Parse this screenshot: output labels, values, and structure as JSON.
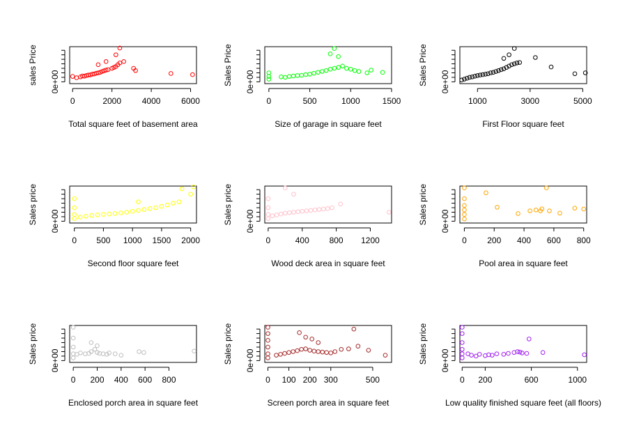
{
  "chart_data": [
    {
      "type": "scatter",
      "color": "#ff0000",
      "xlabel": "Total square feet of basement area",
      "ylabel": "sales Price",
      "xlim": [
        -150,
        6300
      ],
      "ylim": [
        -40000,
        780000
      ],
      "xticks": [
        "0",
        "2000",
        "4000",
        "6000"
      ],
      "yticks": [
        "0e+00"
      ],
      "x": [
        0,
        200,
        400,
        500,
        600,
        700,
        800,
        900,
        1000,
        1100,
        1200,
        1300,
        1400,
        1500,
        1600,
        1700,
        1800,
        2000,
        2100,
        2200,
        2300,
        2400,
        2600,
        3100,
        3200,
        5000,
        6100,
        1300,
        1700,
        2200,
        2400
      ],
      "y": [
        120000,
        90000,
        110000,
        130000,
        125000,
        140000,
        150000,
        155000,
        170000,
        175000,
        190000,
        200000,
        210000,
        230000,
        245000,
        260000,
        270000,
        300000,
        320000,
        340000,
        380000,
        420000,
        450000,
        300000,
        250000,
        185000,
        160000,
        380000,
        450000,
        600000,
        750000
      ]
    },
    {
      "type": "scatter",
      "color": "#00ff00",
      "xlabel": "Size of garage in square feet",
      "ylabel": "Sales Price",
      "xlim": [
        -50,
        1500
      ],
      "ylim": [
        -40000,
        780000
      ],
      "xticks": [
        "0",
        "500",
        "1000",
        "1500"
      ],
      "yticks": [
        "0e+00"
      ],
      "x": [
        0,
        0,
        0,
        150,
        200,
        250,
        300,
        350,
        400,
        450,
        500,
        550,
        600,
        650,
        700,
        750,
        800,
        850,
        900,
        950,
        1000,
        1050,
        1100,
        1200,
        1250,
        1390,
        750,
        800,
        850
      ],
      "y": [
        60000,
        120000,
        200000,
        110000,
        100000,
        120000,
        130000,
        140000,
        145000,
        160000,
        170000,
        190000,
        210000,
        230000,
        250000,
        280000,
        300000,
        320000,
        350000,
        300000,
        280000,
        250000,
        230000,
        200000,
        260000,
        210000,
        620000,
        740000,
        560000
      ]
    },
    {
      "type": "scatter",
      "color": "#000000",
      "xlabel": "First Floor square feet",
      "ylabel": "Sales Price",
      "xlim": [
        330,
        5150
      ],
      "ylim": [
        -40000,
        780000
      ],
      "xticks": [
        "1000",
        "3000",
        "5000"
      ],
      "yticks": [
        "0e+00"
      ],
      "x": [
        400,
        500,
        600,
        700,
        800,
        900,
        1000,
        1100,
        1200,
        1300,
        1400,
        1500,
        1600,
        1700,
        1800,
        1900,
        2000,
        2100,
        2200,
        2300,
        2400,
        2500,
        2600,
        3200,
        3800,
        4700,
        5100,
        2000,
        2200,
        2400
      ],
      "y": [
        40000,
        60000,
        80000,
        100000,
        110000,
        125000,
        140000,
        150000,
        160000,
        170000,
        180000,
        200000,
        210000,
        230000,
        250000,
        270000,
        290000,
        320000,
        350000,
        380000,
        400000,
        420000,
        430000,
        540000,
        330000,
        180000,
        200000,
        520000,
        600000,
        740000
      ]
    },
    {
      "type": "scatter",
      "color": "#ffff00",
      "xlabel": "Second floor square feet",
      "ylabel": "Sales price",
      "xlim": [
        -80,
        2100
      ],
      "ylim": [
        -40000,
        780000
      ],
      "xticks": [
        "0",
        "500",
        "1000",
        "1500",
        "2000"
      ],
      "yticks": [
        "0e+00"
      ],
      "x": [
        0,
        0,
        0,
        0,
        100,
        200,
        300,
        400,
        500,
        600,
        700,
        800,
        900,
        1000,
        1100,
        1200,
        1300,
        1400,
        1500,
        1600,
        1700,
        1800,
        1850,
        2000,
        2050,
        1100
      ],
      "y": [
        60000,
        150000,
        300000,
        500000,
        90000,
        110000,
        130000,
        140000,
        150000,
        160000,
        170000,
        185000,
        200000,
        220000,
        240000,
        260000,
        280000,
        300000,
        330000,
        360000,
        400000,
        430000,
        720000,
        600000,
        760000,
        430000
      ]
    },
    {
      "type": "scatter",
      "color": "#ffc0cb",
      "xlabel": "Wood deck area in square feet",
      "ylabel": "Sales price",
      "xlim": [
        -40,
        1450
      ],
      "ylim": [
        -40000,
        780000
      ],
      "xticks": [
        "0",
        "400",
        "800",
        "1200"
      ],
      "yticks": [
        "0e+00"
      ],
      "x": [
        0,
        0,
        0,
        0,
        50,
        100,
        150,
        200,
        250,
        300,
        350,
        400,
        450,
        500,
        550,
        600,
        650,
        700,
        750,
        850,
        1420,
        200,
        300
      ],
      "y": [
        60000,
        150000,
        300000,
        500000,
        120000,
        140000,
        160000,
        180000,
        190000,
        200000,
        210000,
        220000,
        230000,
        240000,
        250000,
        260000,
        270000,
        280000,
        300000,
        380000,
        200000,
        740000,
        600000
      ]
    },
    {
      "type": "scatter",
      "color": "#ffa500",
      "xlabel": "Pool area in square feet",
      "ylabel": "Sales price",
      "xlim": [
        -30,
        820
      ],
      "ylim": [
        -40000,
        780000
      ],
      "xticks": [
        "0",
        "200",
        "400",
        "600",
        "800"
      ],
      "yticks": [
        "0e+00"
      ],
      "x": [
        0,
        0,
        0,
        0,
        0,
        0,
        145,
        220,
        360,
        440,
        480,
        510,
        520,
        550,
        570,
        640,
        740,
        800
      ],
      "y": [
        50000,
        150000,
        250000,
        350000,
        500000,
        740000,
        630000,
        310000,
        170000,
        230000,
        250000,
        230000,
        275000,
        740000,
        230000,
        180000,
        290000,
        270000
      ]
    },
    {
      "type": "scatter",
      "color": "#bebebe",
      "xlabel": "Enclosed porch area in square feet",
      "ylabel": "Sales price",
      "xlim": [
        -30,
        1030
      ],
      "ylim": [
        -40000,
        780000
      ],
      "xticks": [
        "0",
        "200",
        "400",
        "600",
        "800"
      ],
      "yticks": [
        "0e+00"
      ],
      "x": [
        0,
        0,
        0,
        0,
        0,
        30,
        60,
        100,
        130,
        150,
        180,
        200,
        220,
        250,
        280,
        300,
        350,
        400,
        550,
        590,
        1010,
        150,
        200
      ],
      "y": [
        60000,
        150000,
        300000,
        500000,
        740000,
        140000,
        170000,
        150000,
        160000,
        200000,
        250000,
        180000,
        160000,
        150000,
        140000,
        170000,
        150000,
        120000,
        200000,
        180000,
        210000,
        400000,
        330000
      ]
    },
    {
      "type": "scatter",
      "color": "#a52a2a",
      "xlabel": "Screen porch area in square feet",
      "ylabel": "Sales price",
      "xlim": [
        -15,
        590
      ],
      "ylim": [
        -40000,
        780000
      ],
      "xticks": [
        "0",
        "100",
        "200",
        "300",
        "500"
      ],
      "yticks": [
        "0e+00"
      ],
      "x": [
        0,
        0,
        0,
        0,
        0,
        0,
        40,
        60,
        80,
        100,
        120,
        140,
        160,
        180,
        200,
        220,
        240,
        260,
        280,
        300,
        320,
        350,
        385,
        410,
        430,
        480,
        560,
        150,
        180,
        210,
        240
      ],
      "y": [
        60000,
        150000,
        300000,
        450000,
        600000,
        740000,
        120000,
        140000,
        160000,
        180000,
        200000,
        220000,
        250000,
        260000,
        230000,
        210000,
        200000,
        190000,
        180000,
        170000,
        200000,
        250000,
        260000,
        700000,
        320000,
        230000,
        120000,
        620000,
        520000,
        480000,
        400000
      ]
    },
    {
      "type": "scatter",
      "color": "#a020f0",
      "xlabel": "Low quality finished square feet (all floors)",
      "ylabel": "Sales price",
      "xlim": [
        -20,
        1080
      ],
      "ylim": [
        -40000,
        780000
      ],
      "xticks": [
        "0",
        "200",
        "600",
        "1000"
      ],
      "yticks": [
        "0e+00"
      ],
      "x": [
        0,
        0,
        0,
        0,
        0,
        0,
        50,
        80,
        120,
        150,
        200,
        230,
        260,
        300,
        360,
        400,
        450,
        480,
        500,
        520,
        560,
        580,
        700,
        1060
      ],
      "y": [
        60000,
        150000,
        250000,
        400000,
        600000,
        740000,
        150000,
        120000,
        100000,
        140000,
        110000,
        130000,
        120000,
        150000,
        140000,
        160000,
        180000,
        200000,
        190000,
        170000,
        160000,
        480000,
        180000,
        130000
      ]
    }
  ]
}
